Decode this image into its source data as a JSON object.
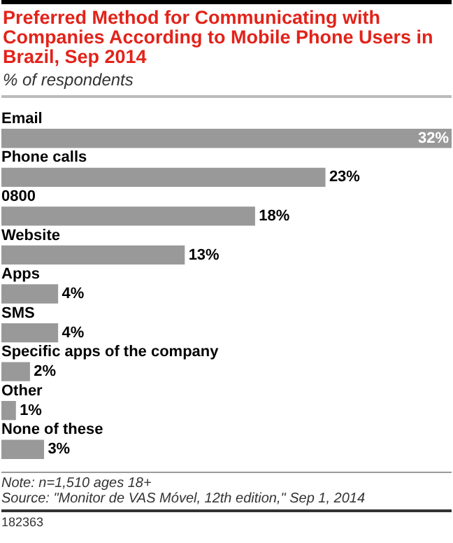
{
  "chart_data": {
    "type": "bar",
    "orientation": "horizontal",
    "title": "Preferred Method for Communicating with Companies According to Mobile Phone Users in Brazil, Sep 2014",
    "subtitle": "% of respondents",
    "categories": [
      "Email",
      "Phone calls",
      "0800",
      "Website",
      "Apps",
      "SMS",
      "Specific apps of the company",
      "Other",
      "None of these"
    ],
    "values": [
      32,
      23,
      18,
      13,
      4,
      4,
      2,
      1,
      3
    ],
    "value_labels": [
      "32%",
      "23%",
      "18%",
      "13%",
      "4%",
      "4%",
      "2%",
      "1%",
      "3%"
    ],
    "color": "#999999",
    "legend": false,
    "annotations": [
      "Note: n=1,510 ages 18+",
      "Source: \"Monitor de VAS Móvel, 12th edition,\" Sep 1, 2014",
      "182363"
    ]
  }
}
